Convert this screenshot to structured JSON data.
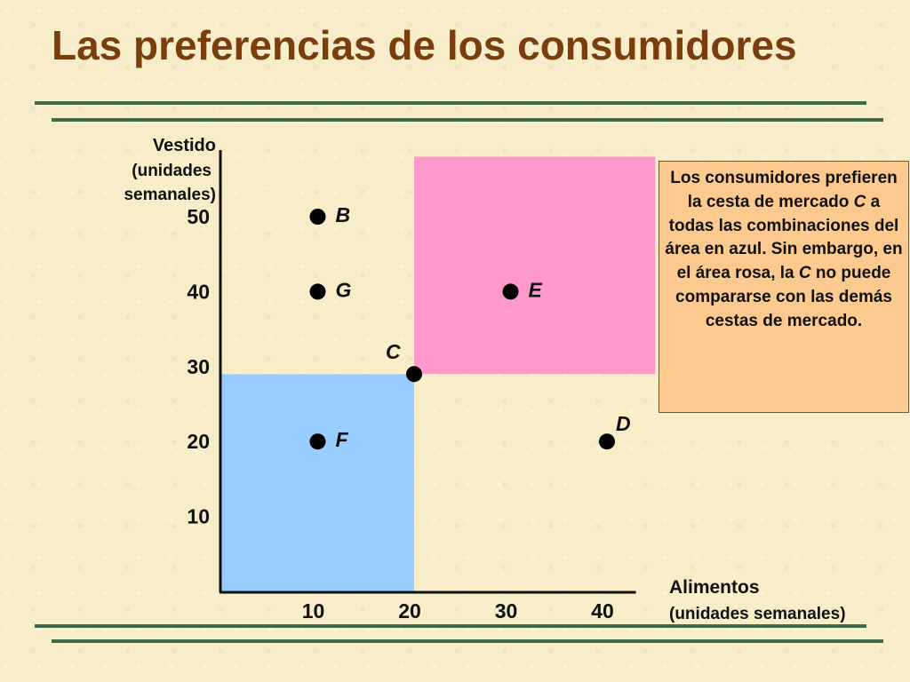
{
  "slide": {
    "title": "Las preferencias de los consumidores",
    "colors": {
      "title": "#7a3e0e",
      "rule": "#3f6b48",
      "background": "#f7edc9",
      "callout_bg": "#fcc98f"
    }
  },
  "callout": {
    "part1": "Los consumidores prefieren la cesta de mercado ",
    "point_c_1": "C",
    "part2": " a todas las combinaciones del área en azul. Sin embargo, en el área rosa, la ",
    "point_c_2": "C",
    "part3": " no puede compararse con las demás cestas de mercado."
  },
  "chart_data": {
    "type": "scatter",
    "xlabel": [
      "Alimentos",
      "(unidades semanales)"
    ],
    "ylabel": [
      "Vestido",
      "(unidades",
      "semanales)"
    ],
    "x_ticks": [
      10,
      20,
      30,
      40
    ],
    "y_ticks": [
      10,
      20,
      30,
      40,
      50
    ],
    "xlim": [
      0,
      43
    ],
    "ylim": [
      0,
      59
    ],
    "points": [
      {
        "label": "B",
        "x": 10,
        "y": 50
      },
      {
        "label": "G",
        "x": 10,
        "y": 40
      },
      {
        "label": "E",
        "x": 30,
        "y": 40
      },
      {
        "label": "C",
        "x": 20,
        "y": 29
      },
      {
        "label": "F",
        "x": 10,
        "y": 20
      },
      {
        "label": "D",
        "x": 40,
        "y": 20
      }
    ],
    "regions": [
      {
        "name": "blue",
        "color": "#99ccff",
        "x": [
          0,
          20
        ],
        "y": [
          0,
          29
        ]
      },
      {
        "name": "pink",
        "color": "#ff99cc",
        "x": [
          20,
          45
        ],
        "y": [
          29,
          58
        ]
      }
    ]
  }
}
